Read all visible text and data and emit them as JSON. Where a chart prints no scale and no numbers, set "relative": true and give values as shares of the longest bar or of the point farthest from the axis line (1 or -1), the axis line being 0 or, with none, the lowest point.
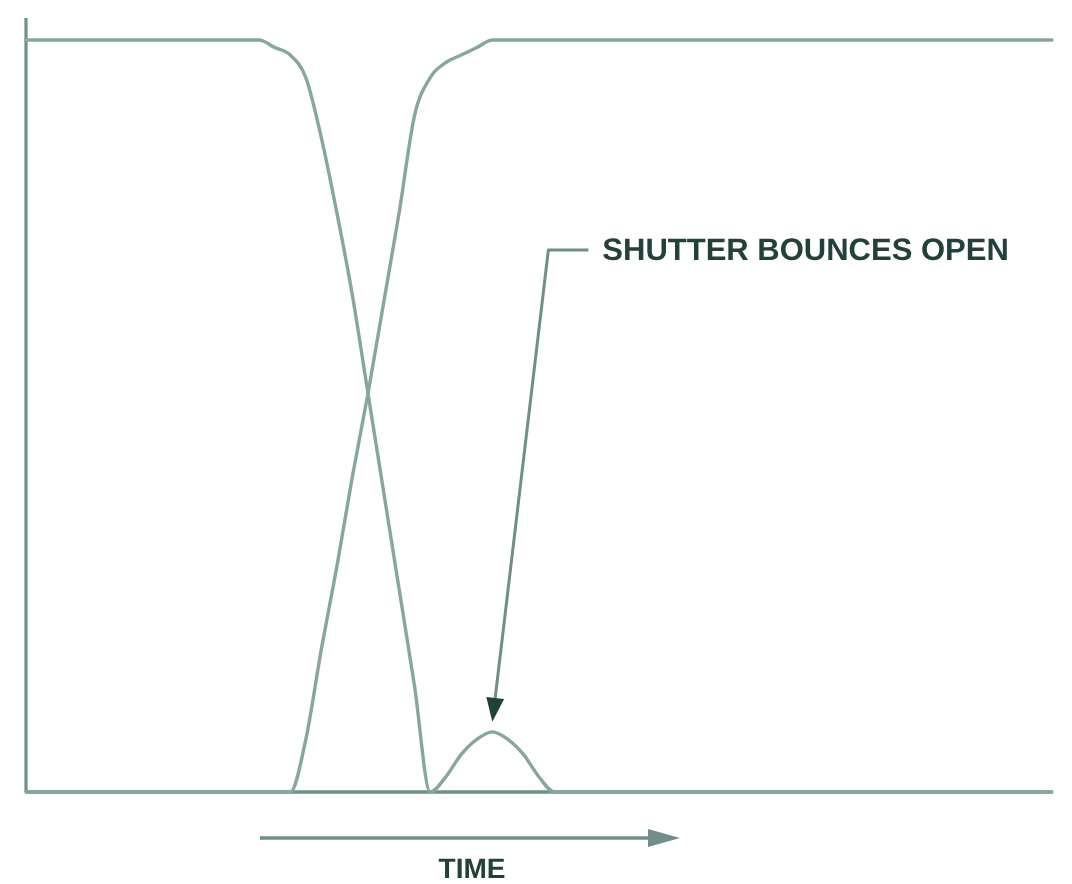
{
  "chart_data": {
    "type": "line",
    "relative": true,
    "xlabel": "TIME",
    "categories": [
      null,
      null,
      null,
      null,
      null,
      null,
      null,
      null,
      null,
      null,
      null,
      null,
      null,
      null,
      null,
      null,
      null,
      null,
      null,
      null,
      null,
      null,
      null,
      null,
      null,
      null,
      null,
      null,
      null,
      null,
      null,
      null,
      null,
      null,
      null,
      null,
      null,
      null,
      null,
      null,
      null,
      null,
      null,
      null,
      null,
      null,
      null,
      null,
      null,
      null,
      null,
      null,
      null,
      null,
      null,
      null,
      null,
      null,
      null,
      null,
      null,
      null,
      null,
      null,
      null,
      null,
      null
    ],
    "series": [
      {
        "color": "#86a69e",
        "values": [
          1,
          1,
          1,
          1,
          1,
          1,
          1,
          1,
          1,
          1,
          1,
          1,
          1,
          1,
          1,
          1,
          0.99,
          0.98,
          0.95,
          0.87,
          0.77,
          0.66,
          0.53,
          0.4,
          0.27,
          0.14,
          0,
          0.02,
          0.05,
          0.07,
          0.08,
          0.07,
          0.05,
          0.02,
          0,
          0,
          0,
          0,
          0,
          0,
          0,
          0,
          0,
          0,
          0,
          0,
          0,
          0,
          0,
          0,
          0,
          0,
          0,
          0,
          0,
          0,
          0,
          0,
          0,
          0,
          0,
          0,
          0,
          0,
          0,
          0,
          0
        ]
      },
      {
        "color": "#86a69e",
        "values": [
          0,
          0,
          0,
          0,
          0,
          0,
          0,
          0,
          0,
          0,
          0,
          0,
          0,
          0,
          0,
          0,
          0,
          0,
          0.07,
          0.19,
          0.3,
          0.42,
          0.53,
          0.65,
          0.77,
          0.9,
          0.95,
          0.97,
          0.98,
          0.99,
          1,
          1,
          1,
          1,
          1,
          1,
          1,
          1,
          1,
          1,
          1,
          1,
          1,
          1,
          1,
          1,
          1,
          1,
          1,
          1,
          1,
          1,
          1,
          1,
          1,
          1,
          1,
          1,
          1,
          1,
          1,
          1,
          1,
          1,
          1,
          1,
          1
        ]
      }
    ],
    "annotations": [
      "SHUTTER BOUNCES OPEN"
    ]
  }
}
